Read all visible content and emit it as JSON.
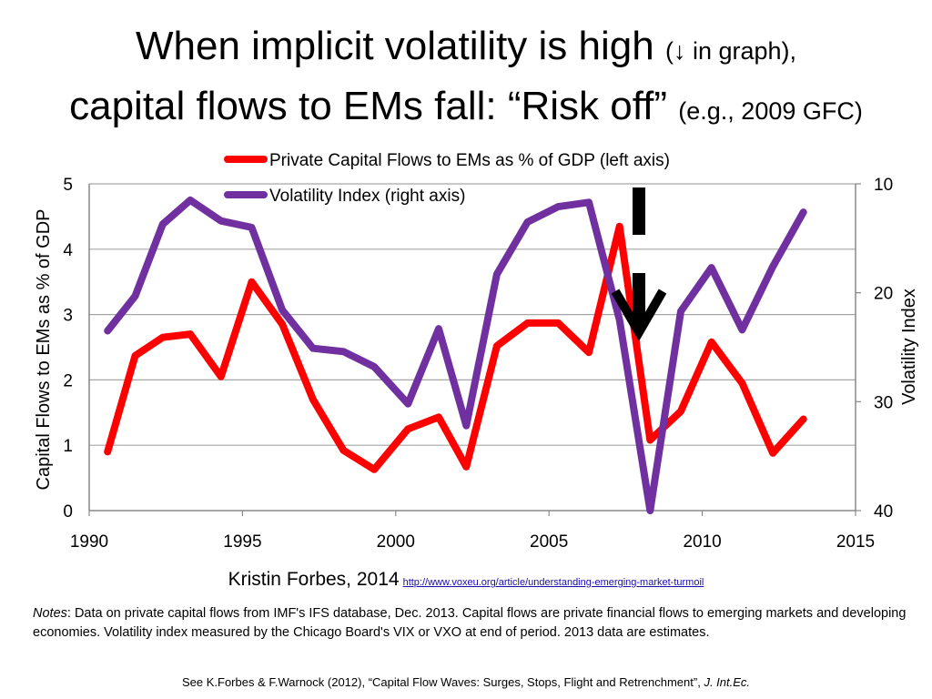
{
  "title": {
    "line1_main": "When implicit volatility is high",
    "line1_small": "(↓ in graph),",
    "line2_main": "capital flows to EMs fall: “Risk off”",
    "line2_small": "(e.g., 2009 GFC)"
  },
  "chart_data": {
    "type": "line",
    "xlabel": "",
    "ylabel_left": "Capital Flows to EMs as % of GDP",
    "ylabel_right": "Volatility Index",
    "xlim": [
      1990,
      2015
    ],
    "xticks": [
      "1990",
      "1995",
      "2000",
      "2005",
      "2010",
      "2015"
    ],
    "ylim_left": [
      0,
      5
    ],
    "yticks_left": [
      "0",
      "1",
      "2",
      "3",
      "4",
      "5"
    ],
    "ylim_right": [
      40,
      10
    ],
    "yticks_right": [
      "10",
      "20",
      "30",
      "40"
    ],
    "right_axis_inverted": true,
    "grid": true,
    "legend_position": "top-left",
    "series": [
      {
        "name": "Private Capital Flows to EMs as % of GDP (left axis)",
        "axis": "left",
        "color": "#ff0000",
        "x": [
          1990.6,
          1991.5,
          1992.4,
          1993.3,
          1994.3,
          1995.3,
          1996.3,
          1997.3,
          1998.3,
          1999.3,
          2000.4,
          2001.4,
          2002.3,
          2003.3,
          2004.3,
          2005.3,
          2006.3,
          2007.3,
          2008.3,
          2009.3,
          2010.3,
          2011.3,
          2012.3,
          2013.3
        ],
        "values": [
          0.9,
          2.37,
          2.65,
          2.7,
          2.05,
          3.5,
          2.85,
          1.7,
          0.92,
          0.63,
          1.25,
          1.43,
          0.67,
          2.52,
          2.87,
          2.87,
          2.42,
          4.35,
          1.08,
          1.52,
          2.58,
          1.95,
          0.88,
          1.4
        ]
      },
      {
        "name": "Volatility Index (right axis)",
        "axis": "right",
        "color": "#7030a0",
        "x": [
          1990.6,
          1991.5,
          1992.4,
          1993.3,
          1994.3,
          1995.3,
          1996.3,
          1997.3,
          1998.3,
          1999.3,
          2000.4,
          2001.4,
          2002.3,
          2003.3,
          2004.3,
          2005.3,
          2006.3,
          2007.3,
          2008.3,
          2009.3,
          2010.3,
          2011.3,
          2012.3,
          2013.3
        ],
        "values": [
          23.5,
          20.3,
          13.7,
          11.5,
          13.4,
          14.0,
          21.6,
          25.1,
          25.4,
          26.8,
          30.2,
          23.3,
          32.2,
          18.3,
          13.5,
          12.1,
          11.7,
          22.5,
          40.0,
          21.7,
          17.7,
          23.4,
          17.6,
          12.6
        ]
      }
    ],
    "annotation": "downward arrow marking the 2008 volatility spike"
  },
  "citation": {
    "author": "Kristin Forbes, 2014",
    "url": "http://www.voxeu.org/article/understanding-emerging-market-turmoil"
  },
  "notes": {
    "label": "Notes",
    "text": ": Data on private capital flows from IMF's IFS database, Dec. 2013. Capital flows are private financial flows to emerging markets and developing economies. Volatility index measured by the Chicago Board's VIX or VXO at end of period. 2013 data are estimates."
  },
  "footer": {
    "text": "See K.Forbes & F.Warnock (2012), “Capital Flow Waves: Surges, Stops, Flight and Retrenchment”,",
    "journal": "J. Int.Ec."
  }
}
